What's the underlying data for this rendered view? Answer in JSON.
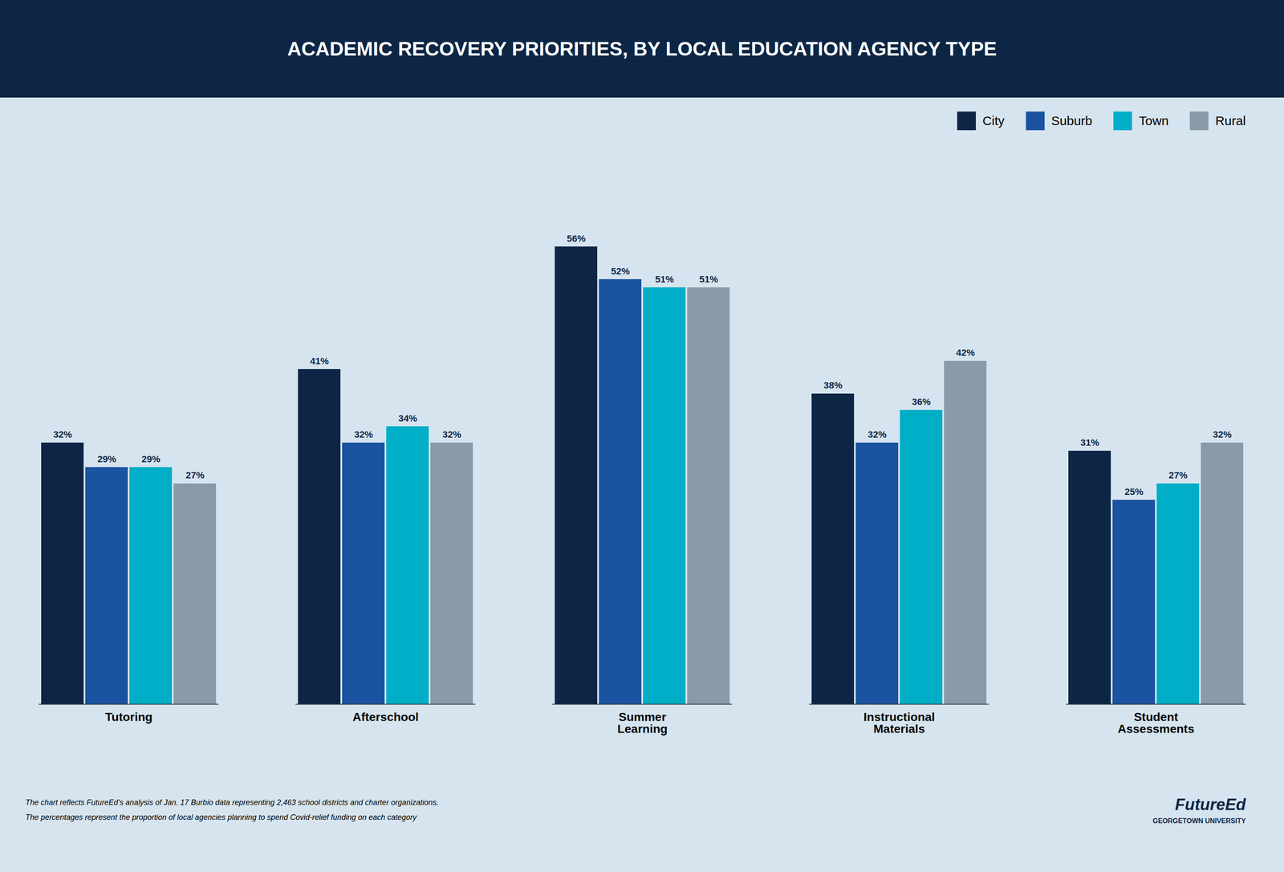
{
  "chart_data": {
    "type": "bar",
    "title": "ACADEMIC RECOVERY PRIORITIES, BY LOCAL EDUCATION AGENCY TYPE",
    "categories": [
      "Tutoring",
      "Afterschool",
      "Summer\nLearning",
      "Instructional\nMaterials",
      "Student\nAssessments"
    ],
    "series": [
      {
        "name": "City",
        "color": "#0d2645",
        "values": [
          32,
          41,
          56,
          38,
          31
        ],
        "value_labels": [
          "32%",
          "41%",
          "56%",
          "38%",
          "31%"
        ]
      },
      {
        "name": "Suburb",
        "color": "#1a53a0",
        "values": [
          29,
          32,
          52,
          32,
          25
        ],
        "value_labels": [
          "29%",
          "32%",
          "52%",
          "32%",
          "25%"
        ]
      },
      {
        "name": "Town",
        "color": "#00aec7",
        "values": [
          29,
          34,
          51,
          36,
          27
        ],
        "value_labels": [
          "29%",
          "34%",
          "51%",
          "36%",
          "27%"
        ]
      },
      {
        "name": "Rural",
        "color": "#8a9ba8",
        "values": [
          27,
          32,
          51,
          42,
          32
        ],
        "value_labels": [
          "27%",
          "32%",
          "51%",
          "42%",
          "32%"
        ]
      }
    ],
    "ylim": [
      0,
      68
    ],
    "grid": false,
    "legend": "upper right",
    "data_labels": true,
    "tick_labels": "x",
    "annotations": [
      "The chart reflects FutureEd’s analysis of Jan. 17 Burbio data representing 2,463 school districts and charter organizations.",
      "The percentages represent the proportion of local agencies planning to spend Covid-relief funding on each category",
      "FutureEd",
      "GEORGETOWN UNIVERSITY"
    ]
  }
}
